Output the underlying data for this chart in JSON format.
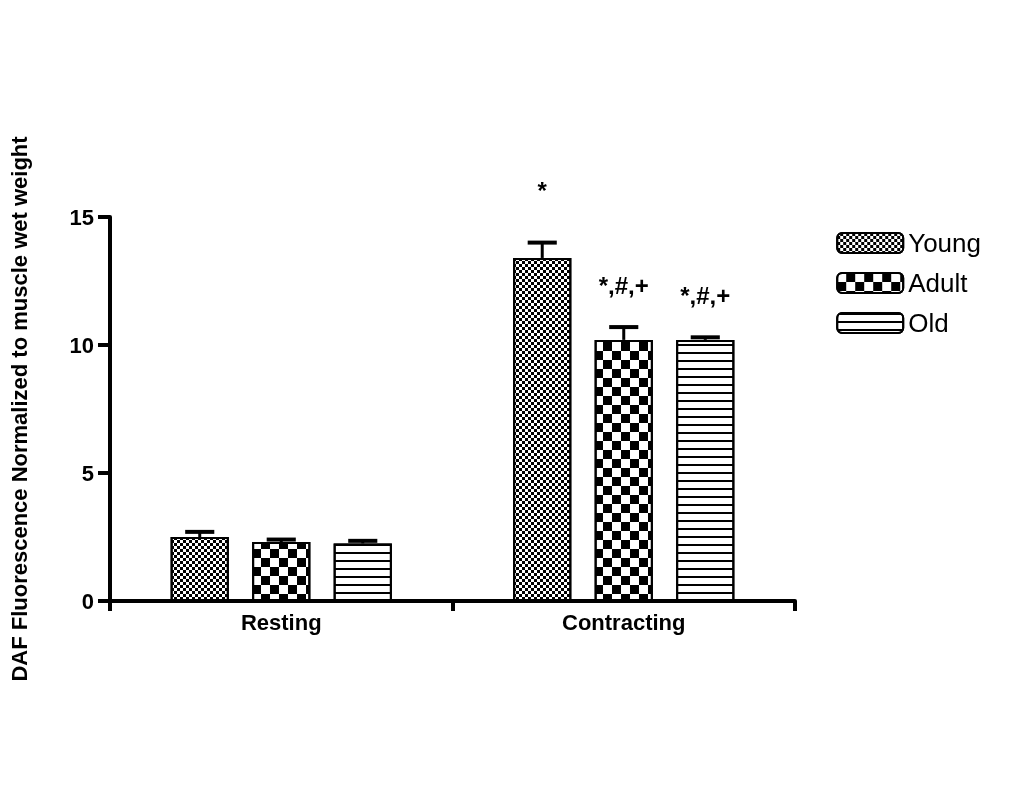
{
  "chart_data": {
    "type": "bar",
    "ylabel": "DAF Fluorescence Normalized to muscle wet weight",
    "categories": [
      "Resting",
      "Contracting"
    ],
    "series": [
      {
        "name": "Young",
        "color": "#ffffff",
        "values": [
          2.5,
          13.4
        ],
        "errors": [
          0.2,
          0.6
        ]
      },
      {
        "name": "Adult",
        "color": "#ffffff",
        "values": [
          2.3,
          10.2
        ],
        "errors": [
          0.1,
          0.5
        ]
      },
      {
        "name": "Old",
        "color": "#ffffff",
        "values": [
          2.25,
          10.2
        ],
        "errors": [
          0.1,
          0.1
        ]
      }
    ],
    "ylim": [
      0,
      15
    ],
    "yticks": [
      0,
      5,
      10,
      15
    ],
    "grid": false,
    "legend": "top right",
    "annotations": [
      "*",
      "*,#,+",
      "*,#,+"
    ]
  }
}
